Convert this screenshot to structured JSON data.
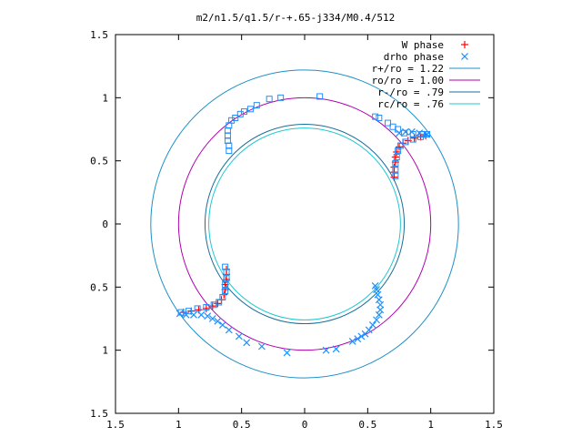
{
  "chart_data": {
    "type": "scatter",
    "title": "m2/n1.5/q1.5/r-+.65-j334/M0.4/512",
    "xlabel": "",
    "ylabel": "",
    "xlim": [
      -1.5,
      1.5
    ],
    "ylim": [
      -1.5,
      1.5
    ],
    "x_ticks": [
      -1.5,
      -1,
      -0.5,
      0,
      0.5,
      1,
      1.5
    ],
    "y_ticks": [
      -1.5,
      -1,
      -0.5,
      0,
      0.5,
      1,
      1.5
    ],
    "x_tick_labels": [
      "1.5",
      "1",
      "0.5",
      "0",
      "0.5",
      "1",
      "1.5"
    ],
    "y_tick_labels": [
      "1.5",
      "1",
      "0.5",
      "0",
      "0.5",
      "1",
      "1.5"
    ],
    "grid": false,
    "legend_position": "top-right",
    "series": [
      {
        "name": "W phase",
        "kind": "points",
        "marker": "plus",
        "color": "#ff0000",
        "points": [
          [
            -0.62,
            -0.36
          ],
          [
            -0.62,
            -0.4
          ],
          [
            -0.62,
            -0.44
          ],
          [
            -0.63,
            -0.48
          ],
          [
            -0.63,
            -0.52
          ],
          [
            -0.64,
            -0.56
          ],
          [
            -0.66,
            -0.6
          ],
          [
            -0.69,
            -0.63
          ],
          [
            -0.73,
            -0.65
          ],
          [
            -0.78,
            -0.67
          ],
          [
            -0.84,
            -0.68
          ],
          [
            -0.9,
            -0.69
          ],
          [
            -0.96,
            -0.7
          ],
          [
            0.71,
            0.37
          ],
          [
            0.71,
            0.41
          ],
          [
            0.71,
            0.45
          ],
          [
            0.72,
            0.49
          ],
          [
            0.72,
            0.53
          ],
          [
            0.73,
            0.57
          ],
          [
            0.75,
            0.61
          ],
          [
            0.78,
            0.64
          ],
          [
            0.82,
            0.66
          ],
          [
            0.87,
            0.68
          ],
          [
            0.92,
            0.69
          ],
          [
            0.96,
            0.7
          ]
        ]
      },
      {
        "name": "drho phase",
        "kind": "points",
        "marker": "cross",
        "color": "#1e90ff",
        "points": [
          [
            -0.99,
            -0.71
          ],
          [
            -0.94,
            -0.72
          ],
          [
            -0.88,
            -0.72
          ],
          [
            -0.82,
            -0.72
          ],
          [
            -0.77,
            -0.73
          ],
          [
            -0.73,
            -0.75
          ],
          [
            -0.69,
            -0.77
          ],
          [
            -0.65,
            -0.8
          ],
          [
            -0.6,
            -0.84
          ],
          [
            -0.52,
            -0.89
          ],
          [
            -0.46,
            -0.94
          ],
          [
            -0.34,
            -0.97
          ],
          [
            -0.14,
            -1.02
          ],
          [
            0.17,
            -1.0
          ],
          [
            0.25,
            -0.99
          ],
          [
            0.38,
            -0.93
          ],
          [
            0.42,
            -0.91
          ],
          [
            0.45,
            -0.89
          ],
          [
            0.48,
            -0.87
          ],
          [
            0.51,
            -0.84
          ],
          [
            0.54,
            -0.8
          ],
          [
            0.57,
            -0.76
          ],
          [
            0.59,
            -0.72
          ],
          [
            0.6,
            -0.68
          ],
          [
            0.6,
            -0.64
          ],
          [
            0.59,
            -0.6
          ],
          [
            0.58,
            -0.56
          ],
          [
            0.57,
            -0.52
          ],
          [
            0.56,
            -0.49
          ],
          [
            0.75,
            0.72
          ],
          [
            0.8,
            0.73
          ],
          [
            0.85,
            0.73
          ],
          [
            0.91,
            0.72
          ],
          [
            0.97,
            0.71
          ]
        ]
      },
      {
        "name": "drho phase (squares)",
        "kind": "points",
        "marker": "square",
        "color": "#1e90ff",
        "points": [
          [
            -0.6,
            0.58
          ],
          [
            -0.6,
            0.62
          ],
          [
            -0.61,
            0.66
          ],
          [
            -0.61,
            0.7
          ],
          [
            -0.61,
            0.74
          ],
          [
            -0.6,
            0.78
          ],
          [
            -0.58,
            0.82
          ],
          [
            -0.55,
            0.84
          ],
          [
            -0.51,
            0.87
          ],
          [
            -0.48,
            0.89
          ],
          [
            -0.43,
            0.91
          ],
          [
            -0.38,
            0.94
          ],
          [
            -0.28,
            0.99
          ],
          [
            -0.19,
            1.0
          ],
          [
            0.12,
            1.01
          ],
          [
            0.56,
            0.85
          ],
          [
            0.59,
            0.84
          ],
          [
            0.66,
            0.8
          ],
          [
            0.7,
            0.77
          ],
          [
            0.74,
            0.75
          ],
          [
            0.79,
            0.72
          ],
          [
            0.86,
            0.71
          ],
          [
            0.93,
            0.71
          ],
          [
            0.97,
            0.71
          ],
          [
            -0.63,
            -0.34
          ],
          [
            -0.62,
            -0.38
          ],
          [
            -0.62,
            -0.43
          ],
          [
            -0.63,
            -0.48
          ],
          [
            -0.63,
            -0.53
          ],
          [
            -0.65,
            -0.58
          ],
          [
            -0.68,
            -0.62
          ],
          [
            -0.72,
            -0.64
          ],
          [
            -0.78,
            -0.66
          ],
          [
            -0.85,
            -0.67
          ],
          [
            -0.92,
            -0.69
          ],
          [
            -0.98,
            -0.7
          ],
          [
            0.72,
            0.38
          ],
          [
            0.72,
            0.43
          ],
          [
            0.72,
            0.48
          ],
          [
            0.73,
            0.53
          ],
          [
            0.74,
            0.58
          ],
          [
            0.76,
            0.62
          ],
          [
            0.8,
            0.65
          ],
          [
            0.86,
            0.67
          ],
          [
            0.92,
            0.69
          ]
        ]
      },
      {
        "name": "r+/ro = 1.22",
        "kind": "circle",
        "radius": 1.22,
        "color": "#1e90c8"
      },
      {
        "name": "ro/ro = 1.00",
        "kind": "circle",
        "radius": 1.0,
        "color": "#b000b0"
      },
      {
        "name": "r-/ro = .79",
        "kind": "circle",
        "radius": 0.79,
        "color": "#1a6f9a"
      },
      {
        "name": "rc/ro = .76",
        "kind": "circle",
        "radius": 0.76,
        "color": "#20c8d0"
      }
    ],
    "legend": [
      {
        "label": "W phase",
        "symbol": "plus",
        "color": "#ff0000"
      },
      {
        "label": "drho phase",
        "symbol": "cross",
        "color": "#1e90ff"
      },
      {
        "label": "r+/ro = 1.22",
        "symbol": "line",
        "color": "#1e90c8"
      },
      {
        "label": "ro/ro = 1.00",
        "symbol": "line",
        "color": "#b000b0"
      },
      {
        "label": "r-/ro = .79",
        "symbol": "line",
        "color": "#1a6f9a"
      },
      {
        "label": "rc/ro = .76",
        "symbol": "line",
        "color": "#20c8d0"
      }
    ]
  }
}
